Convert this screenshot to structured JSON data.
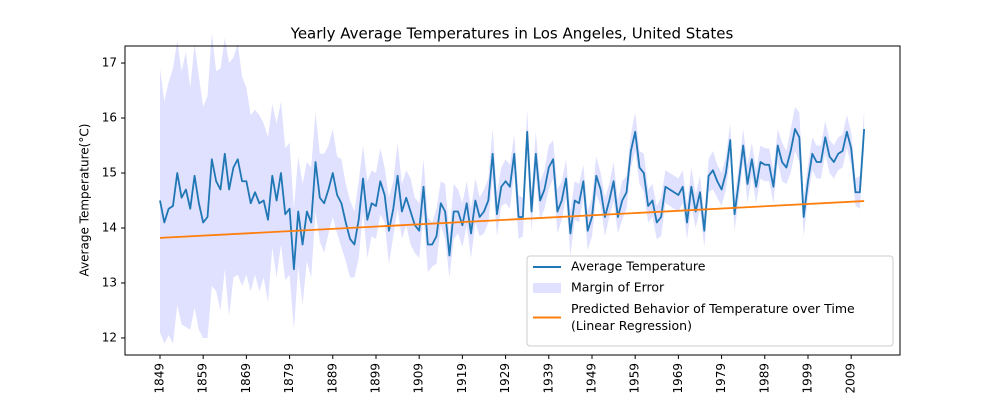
{
  "chart_data": {
    "type": "line",
    "title": "Yearly Average Temperatures in Los Angeles, United States",
    "ylabel": "Average Temperature(°C)",
    "x": [
      1849,
      1850,
      1851,
      1852,
      1853,
      1854,
      1855,
      1856,
      1857,
      1858,
      1859,
      1860,
      1861,
      1862,
      1863,
      1864,
      1865,
      1866,
      1867,
      1868,
      1869,
      1870,
      1871,
      1872,
      1873,
      1874,
      1875,
      1876,
      1877,
      1878,
      1879,
      1880,
      1881,
      1882,
      1883,
      1884,
      1885,
      1886,
      1887,
      1888,
      1889,
      1890,
      1891,
      1892,
      1893,
      1894,
      1895,
      1896,
      1897,
      1898,
      1899,
      1900,
      1901,
      1902,
      1903,
      1904,
      1905,
      1906,
      1907,
      1908,
      1909,
      1910,
      1911,
      1912,
      1913,
      1914,
      1915,
      1916,
      1917,
      1918,
      1919,
      1920,
      1921,
      1922,
      1923,
      1924,
      1925,
      1926,
      1927,
      1928,
      1929,
      1930,
      1931,
      1932,
      1933,
      1934,
      1935,
      1936,
      1937,
      1938,
      1939,
      1940,
      1941,
      1942,
      1943,
      1944,
      1945,
      1946,
      1947,
      1948,
      1949,
      1950,
      1951,
      1952,
      1953,
      1954,
      1955,
      1956,
      1957,
      1958,
      1959,
      1960,
      1961,
      1962,
      1963,
      1964,
      1965,
      1966,
      1967,
      1968,
      1969,
      1970,
      1971,
      1972,
      1973,
      1974,
      1975,
      1976,
      1977,
      1978,
      1979,
      1980,
      1981,
      1982,
      1983,
      1984,
      1985,
      1986,
      1987,
      1988,
      1989,
      1990,
      1991,
      1992,
      1993,
      1994,
      1995,
      1996,
      1997,
      1998,
      1999,
      2000,
      2001,
      2002,
      2003,
      2004,
      2005,
      2006,
      2007,
      2008,
      2009,
      2010,
      2011,
      2012
    ],
    "series": [
      {
        "name": "Average Temperature",
        "color": "#1f77b4",
        "values": [
          14.5,
          14.1,
          14.35,
          14.4,
          15.0,
          14.55,
          14.7,
          14.35,
          14.95,
          14.45,
          14.1,
          14.2,
          15.25,
          14.85,
          14.7,
          15.35,
          14.7,
          15.1,
          15.25,
          14.85,
          14.85,
          14.45,
          14.65,
          14.45,
          14.5,
          14.15,
          14.95,
          14.5,
          15.0,
          14.25,
          14.35,
          13.25,
          14.3,
          13.7,
          14.3,
          14.1,
          15.2,
          14.55,
          14.45,
          14.7,
          15.0,
          14.6,
          14.45,
          14.1,
          13.8,
          13.7,
          14.15,
          14.9,
          14.15,
          14.45,
          14.4,
          14.85,
          14.6,
          13.95,
          14.35,
          14.95,
          14.3,
          14.55,
          14.3,
          14.05,
          13.95,
          14.75,
          13.7,
          13.7,
          13.85,
          14.45,
          14.3,
          13.5,
          14.3,
          14.3,
          14.05,
          14.45,
          13.9,
          14.5,
          14.2,
          14.3,
          14.5,
          15.35,
          14.25,
          14.75,
          14.85,
          14.75,
          15.35,
          14.2,
          14.2,
          15.75,
          14.3,
          15.35,
          14.5,
          14.7,
          15.1,
          15.25,
          14.3,
          14.5,
          14.9,
          13.9,
          14.5,
          14.45,
          14.85,
          13.95,
          14.2,
          14.95,
          14.7,
          14.2,
          14.5,
          14.85,
          14.2,
          14.5,
          14.65,
          15.4,
          15.75,
          15.1,
          15.0,
          14.4,
          14.5,
          14.1,
          14.2,
          14.75,
          14.7,
          14.65,
          14.6,
          14.75,
          14.1,
          14.75,
          14.3,
          14.65,
          13.95,
          14.95,
          15.05,
          14.85,
          14.7,
          15.0,
          15.6,
          14.25,
          14.85,
          15.5,
          14.8,
          15.25,
          14.75,
          15.2,
          15.15,
          15.15,
          14.75,
          15.5,
          15.2,
          15.1,
          15.4,
          15.8,
          15.65,
          14.2,
          14.85,
          15.35,
          15.2,
          15.2,
          15.65,
          15.3,
          15.2,
          15.35,
          15.4,
          15.75,
          15.45,
          14.65,
          14.65,
          15.8
        ]
      },
      {
        "name": "Margin of Error",
        "color": "#e0e0ff",
        "kind": "band",
        "values": [
          2.4,
          2.2,
          2.3,
          2.5,
          2.4,
          2.3,
          2.5,
          2.2,
          2.4,
          2.3,
          2.1,
          2.2,
          2.3,
          2.0,
          2.2,
          2.1,
          2.3,
          2.0,
          2.1,
          1.9,
          1.7,
          1.6,
          1.5,
          1.6,
          1.4,
          1.5,
          1.3,
          1.4,
          1.3,
          1.2,
          1.2,
          1.1,
          1.0,
          1.1,
          0.9,
          1.0,
          0.9,
          0.8,
          0.9,
          0.8,
          0.8,
          0.7,
          0.8,
          0.7,
          0.7,
          0.6,
          0.7,
          0.6,
          0.7,
          0.6,
          0.6,
          0.6,
          0.5,
          0.6,
          0.5,
          0.6,
          0.5,
          0.5,
          0.6,
          0.5,
          0.5,
          0.5,
          0.5,
          0.4,
          0.5,
          0.4,
          0.5,
          0.4,
          0.5,
          0.4,
          0.4,
          0.4,
          0.45,
          0.4,
          0.35,
          0.4,
          0.4,
          0.45,
          0.4,
          0.35,
          0.4,
          0.4,
          0.35,
          0.4,
          0.35,
          0.4,
          0.35,
          0.4,
          0.35,
          0.35,
          0.4,
          0.35,
          0.4,
          0.35,
          0.35,
          0.4,
          0.35,
          0.35,
          0.3,
          0.35,
          0.35,
          0.35,
          0.3,
          0.35,
          0.3,
          0.35,
          0.3,
          0.35,
          0.3,
          0.3,
          0.35,
          0.3,
          0.35,
          0.3,
          0.3,
          0.3,
          0.35,
          0.3,
          0.3,
          0.3,
          0.3,
          0.3,
          0.3,
          0.35,
          0.3,
          0.3,
          0.3,
          0.3,
          0.35,
          0.3,
          0.3,
          0.3,
          0.3,
          0.3,
          0.3,
          0.3,
          0.35,
          0.3,
          0.3,
          0.3,
          0.3,
          0.3,
          0.3,
          0.3,
          0.35,
          0.3,
          0.4,
          0.4,
          0.45,
          0.35,
          0.3,
          0.3,
          0.3,
          0.3,
          0.3,
          0.3,
          0.3,
          0.3,
          0.3,
          0.3,
          0.3,
          0.25,
          0.3,
          0.35
        ]
      },
      {
        "name": "Predicted Behavior of Temperature over Time\n(Linear Regression)",
        "color": "#ff7f0e",
        "x": [
          1849,
          2012
        ],
        "values": [
          13.82,
          14.49
        ]
      }
    ],
    "xlim": [
      1840.9,
      2020.3
    ],
    "ylim": [
      11.69,
      17.31
    ],
    "xticks": [
      1849,
      1859,
      1869,
      1879,
      1889,
      1899,
      1909,
      1919,
      1929,
      1939,
      1949,
      1959,
      1969,
      1979,
      1989,
      1999,
      2009
    ],
    "yticks": [
      12,
      13,
      14,
      15,
      16,
      17
    ],
    "legend": "lower right"
  }
}
